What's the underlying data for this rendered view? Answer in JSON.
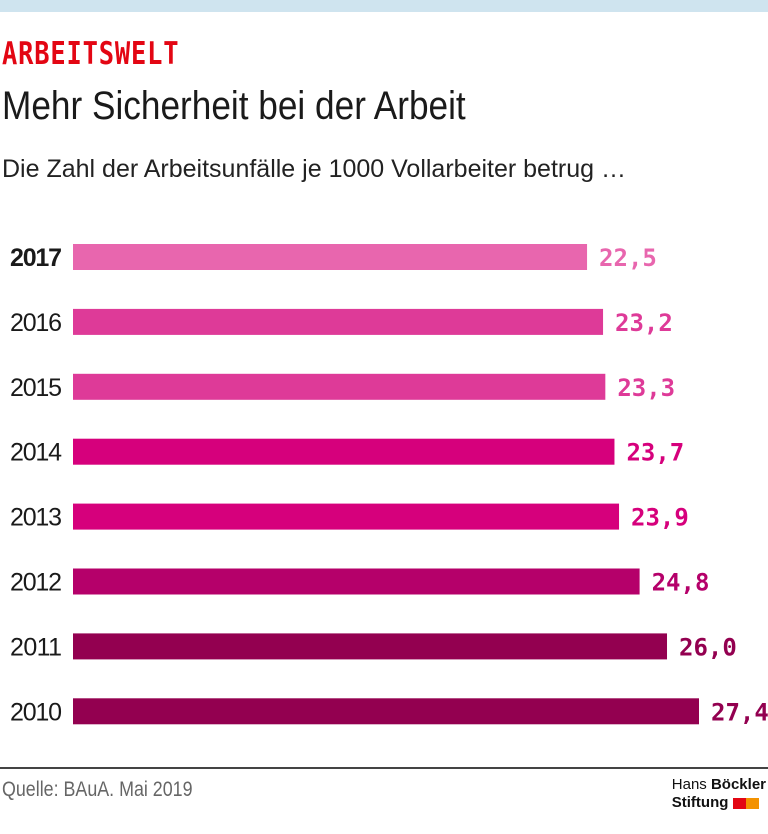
{
  "header": {
    "kicker": "ARBEITSWELT",
    "title": "Mehr Sicherheit bei der Arbeit",
    "subtitle": "Die Zahl der Arbeitsunfälle je 1000 Vollarbeiter betrug …"
  },
  "footer": {
    "source": "Quelle: BAuA. Mai 2019",
    "logo_line1_a": "Hans",
    "logo_line1_b": "Böckler",
    "logo_line2": "Stiftung",
    "logo_colors": [
      "#e30613",
      "#f39200"
    ]
  },
  "chart_data": {
    "type": "bar",
    "orientation": "horizontal",
    "categories": [
      "2017",
      "2016",
      "2015",
      "2014",
      "2013",
      "2012",
      "2011",
      "2010"
    ],
    "values": [
      22.5,
      23.2,
      23.3,
      23.7,
      23.9,
      24.8,
      26.0,
      27.4
    ],
    "labels": [
      "22,5",
      "23,2",
      "23,3",
      "23,7",
      "23,9",
      "24,8",
      "26,0",
      "27,4"
    ],
    "colors": [
      "#e866ae",
      "#de3a98",
      "#de3a98",
      "#d6007c",
      "#d6007c",
      "#b5006a",
      "#930050",
      "#930050"
    ],
    "highlight_category": "2017",
    "xlim": [
      0,
      27.4
    ],
    "grid": false
  }
}
